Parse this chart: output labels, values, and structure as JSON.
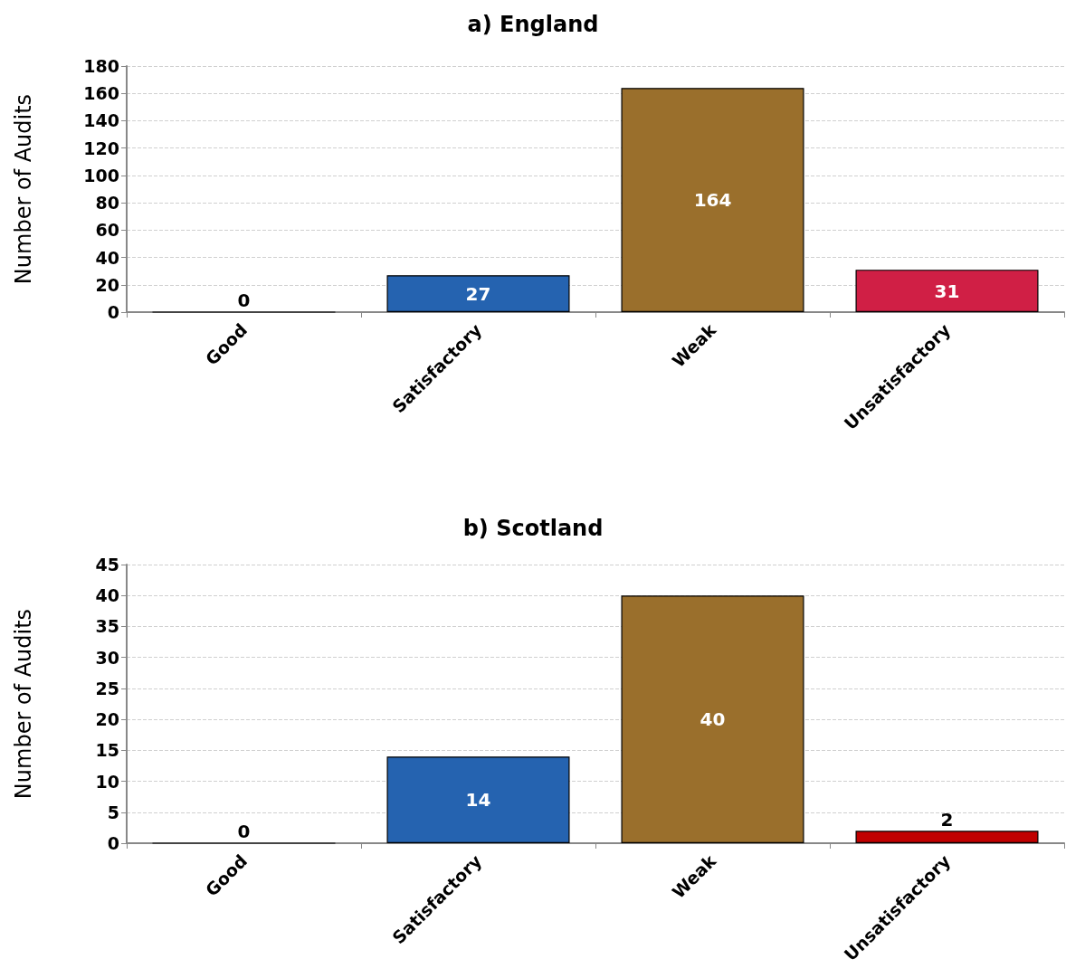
{
  "chart_data": [
    {
      "type": "bar",
      "title": "a) England",
      "ylabel": "Number of Audits",
      "categories": [
        "Good",
        "Satisfactory",
        "Weak",
        "Unsatisfactory"
      ],
      "values": [
        0,
        27,
        164,
        31
      ],
      "colors": [
        "#000000",
        "#2563b0",
        "#9a6f2c",
        "#d01f45"
      ],
      "ylim": [
        0,
        180
      ],
      "yticks": [
        0,
        20,
        40,
        60,
        80,
        100,
        120,
        140,
        160,
        180
      ],
      "grid": "y",
      "data_labels": true
    },
    {
      "type": "bar",
      "title": "b) Scotland",
      "ylabel": "Number of Audits",
      "categories": [
        "Good",
        "Satisfactory",
        "Weak",
        "Unsatisfactory"
      ],
      "values": [
        0,
        14,
        40,
        2
      ],
      "colors": [
        "#000000",
        "#2563b0",
        "#9a6f2c",
        "#c00000"
      ],
      "ylim": [
        0,
        45
      ],
      "yticks": [
        0,
        5,
        10,
        15,
        20,
        25,
        30,
        35,
        40,
        45
      ],
      "grid": "y",
      "data_labels": true
    }
  ]
}
